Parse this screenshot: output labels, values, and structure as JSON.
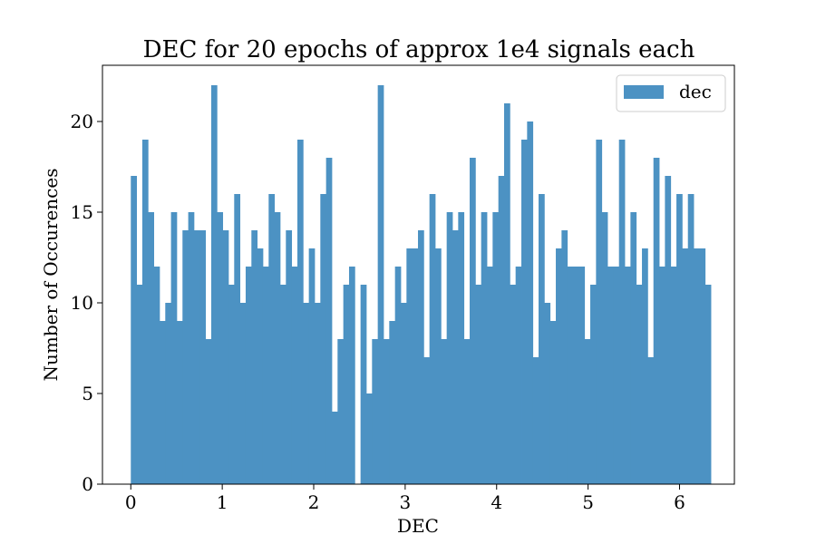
{
  "chart_data": {
    "type": "bar",
    "title": "DEC for 20 epochs of approx 1e4 signals each",
    "xlabel": "DEC",
    "ylabel": "Number of Occurences",
    "xlim": [
      -0.31,
      6.6
    ],
    "ylim": [
      0,
      23.1
    ],
    "xticks": [
      0,
      1,
      2,
      3,
      4,
      5,
      6
    ],
    "yticks": [
      0,
      5,
      10,
      15,
      20
    ],
    "bin_start": 0,
    "bin_width": 0.0628,
    "color": "#4c92c3",
    "legend": {
      "position": "top-right",
      "label": "dec"
    },
    "series": [
      {
        "name": "dec",
        "values": [
          17,
          11,
          19,
          15,
          12,
          9,
          10,
          15,
          9,
          14,
          15,
          14,
          14,
          8,
          22,
          15,
          14,
          11,
          16,
          10,
          12,
          14,
          13,
          12,
          16,
          15,
          11,
          14,
          12,
          19,
          10,
          13,
          10,
          16,
          18,
          4,
          8,
          11,
          12,
          0,
          11,
          5,
          8,
          22,
          8,
          9,
          12,
          10,
          13,
          13,
          14,
          7,
          16,
          13,
          8,
          15,
          14,
          15,
          8,
          18,
          11,
          15,
          12,
          15,
          17,
          21,
          11,
          12,
          19,
          20,
          7,
          16,
          10,
          9,
          13,
          14,
          12,
          12,
          12,
          8,
          11,
          19,
          15,
          12,
          12,
          19,
          12,
          15,
          11,
          13,
          7,
          18,
          12,
          17,
          12,
          16,
          13,
          16,
          13,
          13,
          11
        ]
      }
    ]
  }
}
